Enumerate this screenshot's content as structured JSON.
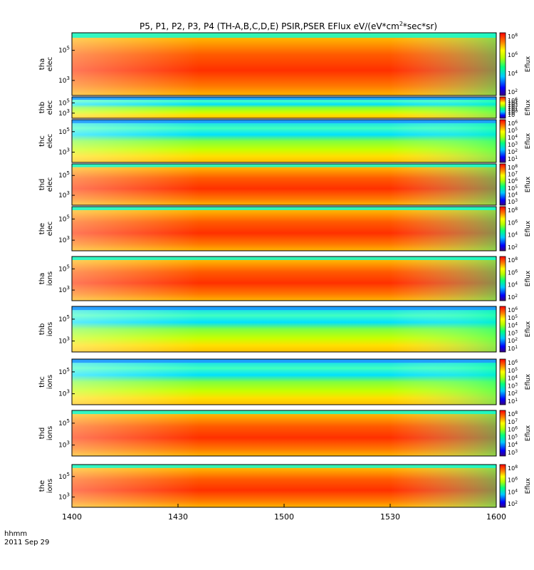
{
  "chart_data": {
    "type": "heatmap",
    "title_html": [
      "P5, P1, P2, P3, P4 (TH-A,B,C,D,E) PSIR,PSER EFlux eV/(eV*cm",
      "2",
      "*sec*sr)"
    ],
    "x_ticks": [
      "1400",
      "1430",
      "1500",
      "1530",
      "1600"
    ],
    "x_tick_values_min": [
      0,
      30,
      60,
      90,
      120
    ],
    "x_range_min": [
      0,
      120
    ],
    "x_unit_label": "hhmm",
    "date_label": "2011 Sep 29",
    "colorbar_label": "Eflux",
    "colormap": "rainbow",
    "panels": [
      {
        "probe": "tha",
        "species": "elec",
        "yticks": [
          "10",
          "10"
        ],
        "yexp": [
          "5",
          "3"
        ],
        "cbticks": [
          "10",
          "10",
          "10",
          "10"
        ],
        "cbexp": [
          "8",
          "6",
          "4",
          "2"
        ],
        "top": 46,
        "bottom": 134
      },
      {
        "probe": "thb",
        "species": "elec",
        "yticks": [
          "10",
          "10"
        ],
        "yexp": [
          "5",
          "3"
        ],
        "cbticks": [
          "10",
          "10",
          "10",
          "10",
          "10",
          "10",
          "10",
          "10"
        ],
        "cbexp": [
          "6",
          "5",
          "4",
          "3",
          "2",
          "1",
          "0",
          ""
        ],
        "top": 136,
        "bottom": 166
      },
      {
        "probe": "thc",
        "species": "elec",
        "yticks": [
          "10",
          "10"
        ],
        "yexp": [
          "5",
          "3"
        ],
        "cbticks": [
          "10",
          "10",
          "10",
          "10",
          "10",
          "10"
        ],
        "cbexp": [
          "6",
          "5",
          "4",
          "3",
          "2",
          "1"
        ],
        "top": 168,
        "bottom": 228
      },
      {
        "probe": "thd",
        "species": "elec",
        "yticks": [
          "10",
          "10"
        ],
        "yexp": [
          "5",
          "3"
        ],
        "cbticks": [
          "10",
          "10",
          "10",
          "10",
          "10",
          "10"
        ],
        "cbexp": [
          "8",
          "7",
          "6",
          "5",
          "4",
          "3"
        ],
        "top": 230,
        "bottom": 288
      },
      {
        "probe": "the",
        "species": "elec",
        "yticks": [
          "10",
          "10"
        ],
        "yexp": [
          "5",
          "3"
        ],
        "cbticks": [
          "10",
          "10",
          "10",
          "10"
        ],
        "cbexp": [
          "8",
          "6",
          "4",
          "2"
        ],
        "top": 290,
        "bottom": 352
      },
      {
        "probe": "tha",
        "species": "ions",
        "yticks": [
          "10",
          "10"
        ],
        "yexp": [
          "5",
          "3"
        ],
        "cbticks": [
          "10",
          "10",
          "10",
          "10"
        ],
        "cbexp": [
          "8",
          "6",
          "4",
          "2"
        ],
        "top": 360,
        "bottom": 422
      },
      {
        "probe": "thb",
        "species": "ions",
        "yticks": [
          "10",
          "10"
        ],
        "yexp": [
          "5",
          "3"
        ],
        "cbticks": [
          "10",
          "10",
          "10",
          "10",
          "10",
          "10"
        ],
        "cbexp": [
          "6",
          "5",
          "4",
          "3",
          "2",
          "1"
        ],
        "top": 430,
        "bottom": 494
      },
      {
        "probe": "thc",
        "species": "ions",
        "yticks": [
          "10",
          "10"
        ],
        "yexp": [
          "5",
          "3"
        ],
        "cbticks": [
          "10",
          "10",
          "10",
          "10",
          "10",
          "10"
        ],
        "cbexp": [
          "6",
          "5",
          "4",
          "3",
          "2",
          "1"
        ],
        "top": 504,
        "bottom": 568
      },
      {
        "probe": "thd",
        "species": "ions",
        "yticks": [
          "10",
          "10"
        ],
        "yexp": [
          "5",
          "3"
        ],
        "cbticks": [
          "10",
          "10",
          "10",
          "10",
          "10",
          "10"
        ],
        "cbexp": [
          "8",
          "7",
          "6",
          "5",
          "4",
          "3"
        ],
        "top": 576,
        "bottom": 640
      },
      {
        "probe": "the",
        "species": "ions",
        "yticks": [
          "10",
          "10"
        ],
        "yexp": [
          "5",
          "3"
        ],
        "cbticks": [
          "10",
          "10",
          "10",
          "10"
        ],
        "cbexp": [
          "8",
          "6",
          "4",
          "2"
        ],
        "top": 652,
        "bottom": 712
      }
    ]
  }
}
